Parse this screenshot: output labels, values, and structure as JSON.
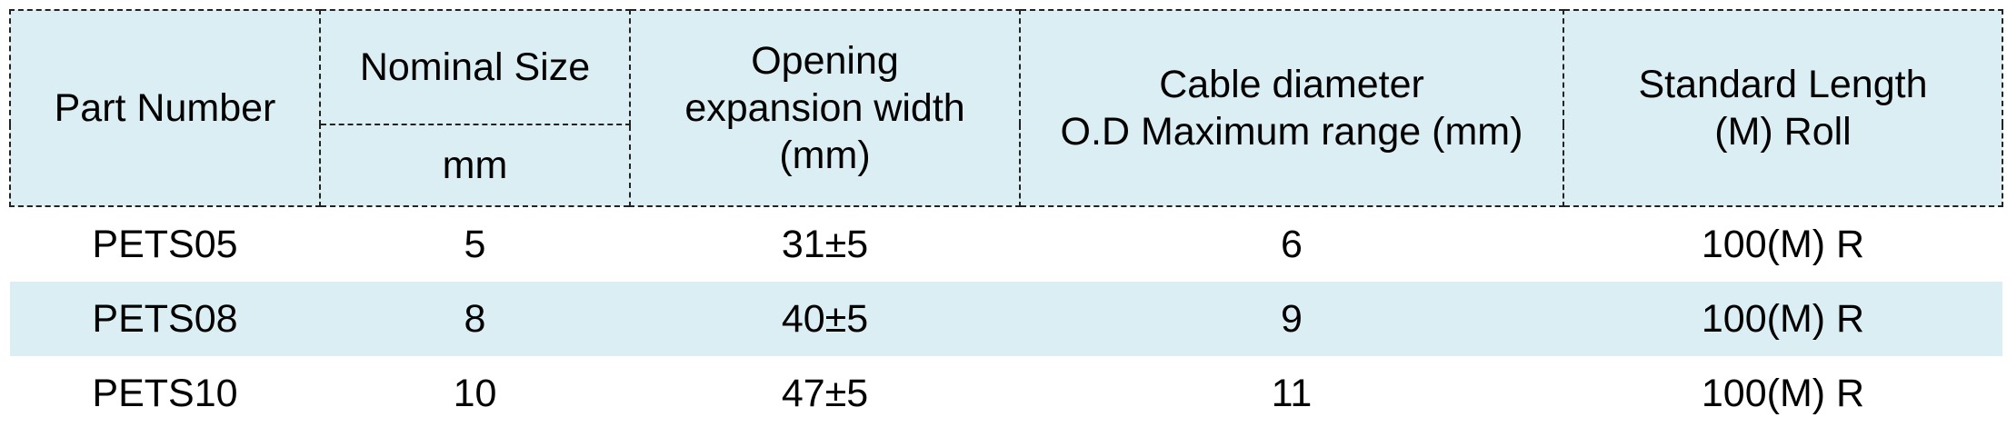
{
  "table": {
    "headers": {
      "part_number": "Part Number",
      "nominal_size": "Nominal Size",
      "nominal_unit": "mm",
      "opening": [
        "Opening",
        "expansion width",
        "(mm)"
      ],
      "cable": [
        "Cable diameter",
        "O.D Maximum range (mm)"
      ],
      "length": [
        "Standard Length",
        "(M) Roll"
      ]
    },
    "rows": [
      {
        "part": "PETS05",
        "size": "5",
        "opening": "31±5",
        "cable": "6",
        "length": "100(M) R"
      },
      {
        "part": "PETS08",
        "size": "8",
        "opening": "40±5",
        "cable": "9",
        "length": "100(M) R"
      },
      {
        "part": "PETS10",
        "size": "10",
        "opening": "47±5",
        "cable": "11",
        "length": "100(M) R"
      }
    ],
    "colors": {
      "header_bg": "#daeef3",
      "alt_row_bg": "#daeef3",
      "border": "#222222"
    }
  }
}
